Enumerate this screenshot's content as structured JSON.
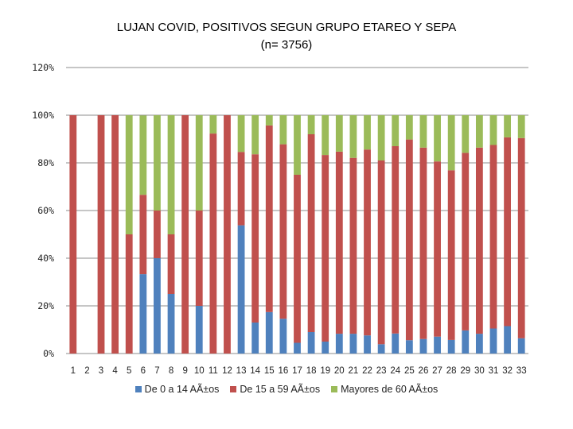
{
  "chart_data": {
    "type": "bar",
    "stacked": "percent",
    "title": "LUJAN COVID, POSITIVOS SEGUN GRUPO ETAREO Y SEPA",
    "subtitle": "(n= 3756)",
    "categories": [
      "1",
      "2",
      "3",
      "4",
      "5",
      "6",
      "7",
      "8",
      "9",
      "10",
      "11",
      "12",
      "13",
      "14",
      "15",
      "16",
      "17",
      "18",
      "19",
      "20",
      "21",
      "22",
      "23",
      "24",
      "25",
      "26",
      "27",
      "28",
      "29",
      "30",
      "31",
      "32",
      "33"
    ],
    "y_ticks": [
      "0%",
      "20%",
      "40%",
      "60%",
      "80%",
      "100%",
      "120%"
    ],
    "ylim": [
      0,
      120
    ],
    "grid": true,
    "legend_position": "bottom",
    "series": [
      {
        "name": "De 0 a 14 AÃ±os",
        "color": "#4F81BD",
        "values": [
          0,
          0,
          0,
          0,
          0,
          33.3,
          40,
          25,
          0,
          20,
          0,
          0,
          53.8,
          13,
          17.4,
          14.6,
          4.5,
          9,
          5,
          8.3,
          8.3,
          7.6,
          3.9,
          8.4,
          5.6,
          6.1,
          7.1,
          5.7,
          9.7,
          8.3,
          10.5,
          11.5,
          6.4
        ]
      },
      {
        "name": "De 15 a 59 AÃ±os",
        "color": "#C0504D",
        "values": [
          100,
          0,
          100,
          100,
          50,
          33.3,
          20,
          25,
          100,
          40,
          92.3,
          100,
          30.8,
          70.6,
          78.3,
          73.2,
          70.5,
          83,
          78.3,
          76.4,
          73.8,
          78,
          77.1,
          78.6,
          84.2,
          80.3,
          73.5,
          71.2,
          74.5,
          78.1,
          77,
          79.2,
          84
        ]
      },
      {
        "name": "Mayores de 60 AÃ±os",
        "color": "#9BBB59",
        "values": [
          0,
          0,
          0,
          0,
          50,
          33.3,
          40,
          50,
          0,
          40,
          7.7,
          0,
          15.4,
          16.4,
          4.3,
          12.2,
          25,
          8,
          16.7,
          15.3,
          17.9,
          14.4,
          19,
          13,
          10.2,
          13.6,
          19.4,
          23.1,
          15.8,
          13.6,
          12.5,
          9.3,
          9.6
        ]
      }
    ]
  }
}
